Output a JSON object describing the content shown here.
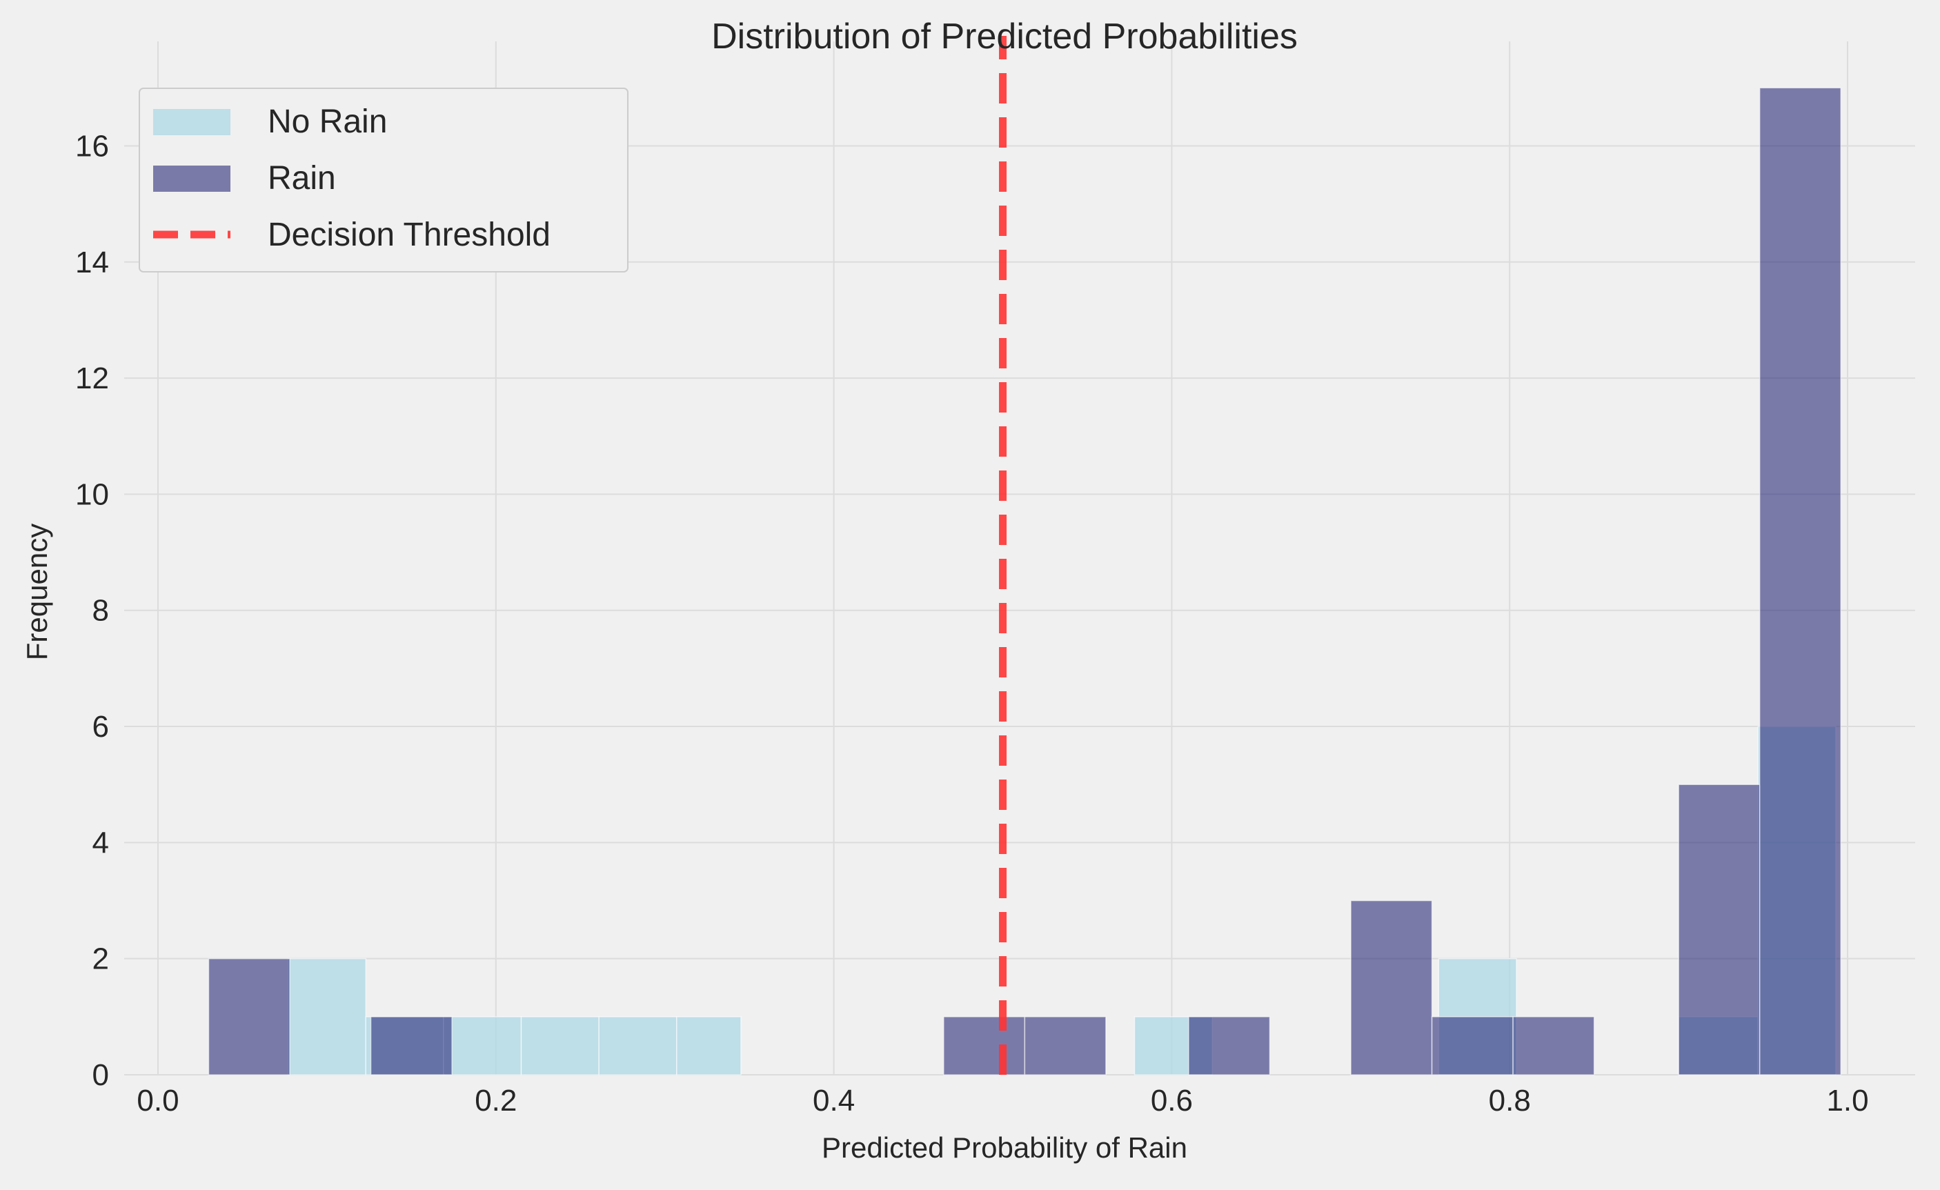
{
  "chart_data": {
    "type": "bar",
    "title": "Distribution of Predicted Probabilities",
    "xlabel": "Predicted Probability of Rain",
    "ylabel": "Frequency",
    "xlim": [
      -0.02,
      1.04
    ],
    "ylim": [
      0,
      17.8
    ],
    "xticks": [
      0.0,
      0.2,
      0.4,
      0.6,
      0.8,
      1.0
    ],
    "xtick_labels": [
      "0.0",
      "0.2",
      "0.4",
      "0.6",
      "0.8",
      "1.0"
    ],
    "yticks": [
      0,
      2,
      4,
      6,
      8,
      10,
      12,
      14,
      16
    ],
    "ytick_labels": [
      "0",
      "2",
      "4",
      "6",
      "8",
      "10",
      "12",
      "14",
      "16"
    ],
    "grid": true,
    "legend_position": "top-left",
    "series": [
      {
        "name": "No Rain",
        "color": "#add8e6",
        "opacity": 0.75,
        "bins": [
          {
            "x0": 0.077,
            "x1": 0.123,
            "value": 2
          },
          {
            "x0": 0.123,
            "x1": 0.169,
            "value": 1
          },
          {
            "x0": 0.169,
            "x1": 0.215,
            "value": 1
          },
          {
            "x0": 0.215,
            "x1": 0.261,
            "value": 1
          },
          {
            "x0": 0.261,
            "x1": 0.307,
            "value": 1
          },
          {
            "x0": 0.307,
            "x1": 0.345,
            "value": 1
          },
          {
            "x0": 0.578,
            "x1": 0.624,
            "value": 1
          },
          {
            "x0": 0.758,
            "x1": 0.804,
            "value": 2
          },
          {
            "x0": 0.9,
            "x1": 0.947,
            "value": 1
          },
          {
            "x0": 0.947,
            "x1": 0.993,
            "value": 6
          }
        ]
      },
      {
        "name": "Rain",
        "color": "#191970",
        "opacity": 0.55,
        "bins": [
          {
            "x0": 0.03,
            "x1": 0.078,
            "value": 2
          },
          {
            "x0": 0.126,
            "x1": 0.174,
            "value": 1
          },
          {
            "x0": 0.465,
            "x1": 0.513,
            "value": 1
          },
          {
            "x0": 0.513,
            "x1": 0.561,
            "value": 1
          },
          {
            "x0": 0.61,
            "x1": 0.658,
            "value": 1
          },
          {
            "x0": 0.706,
            "x1": 0.754,
            "value": 3
          },
          {
            "x0": 0.754,
            "x1": 0.802,
            "value": 1
          },
          {
            "x0": 0.802,
            "x1": 0.85,
            "value": 1
          },
          {
            "x0": 0.9,
            "x1": 0.948,
            "value": 5
          },
          {
            "x0": 0.948,
            "x1": 0.996,
            "value": 17
          }
        ]
      }
    ],
    "threshold": {
      "name": "Decision Threshold",
      "x": 0.5,
      "color": "#ff3333",
      "style": "dashed"
    }
  }
}
